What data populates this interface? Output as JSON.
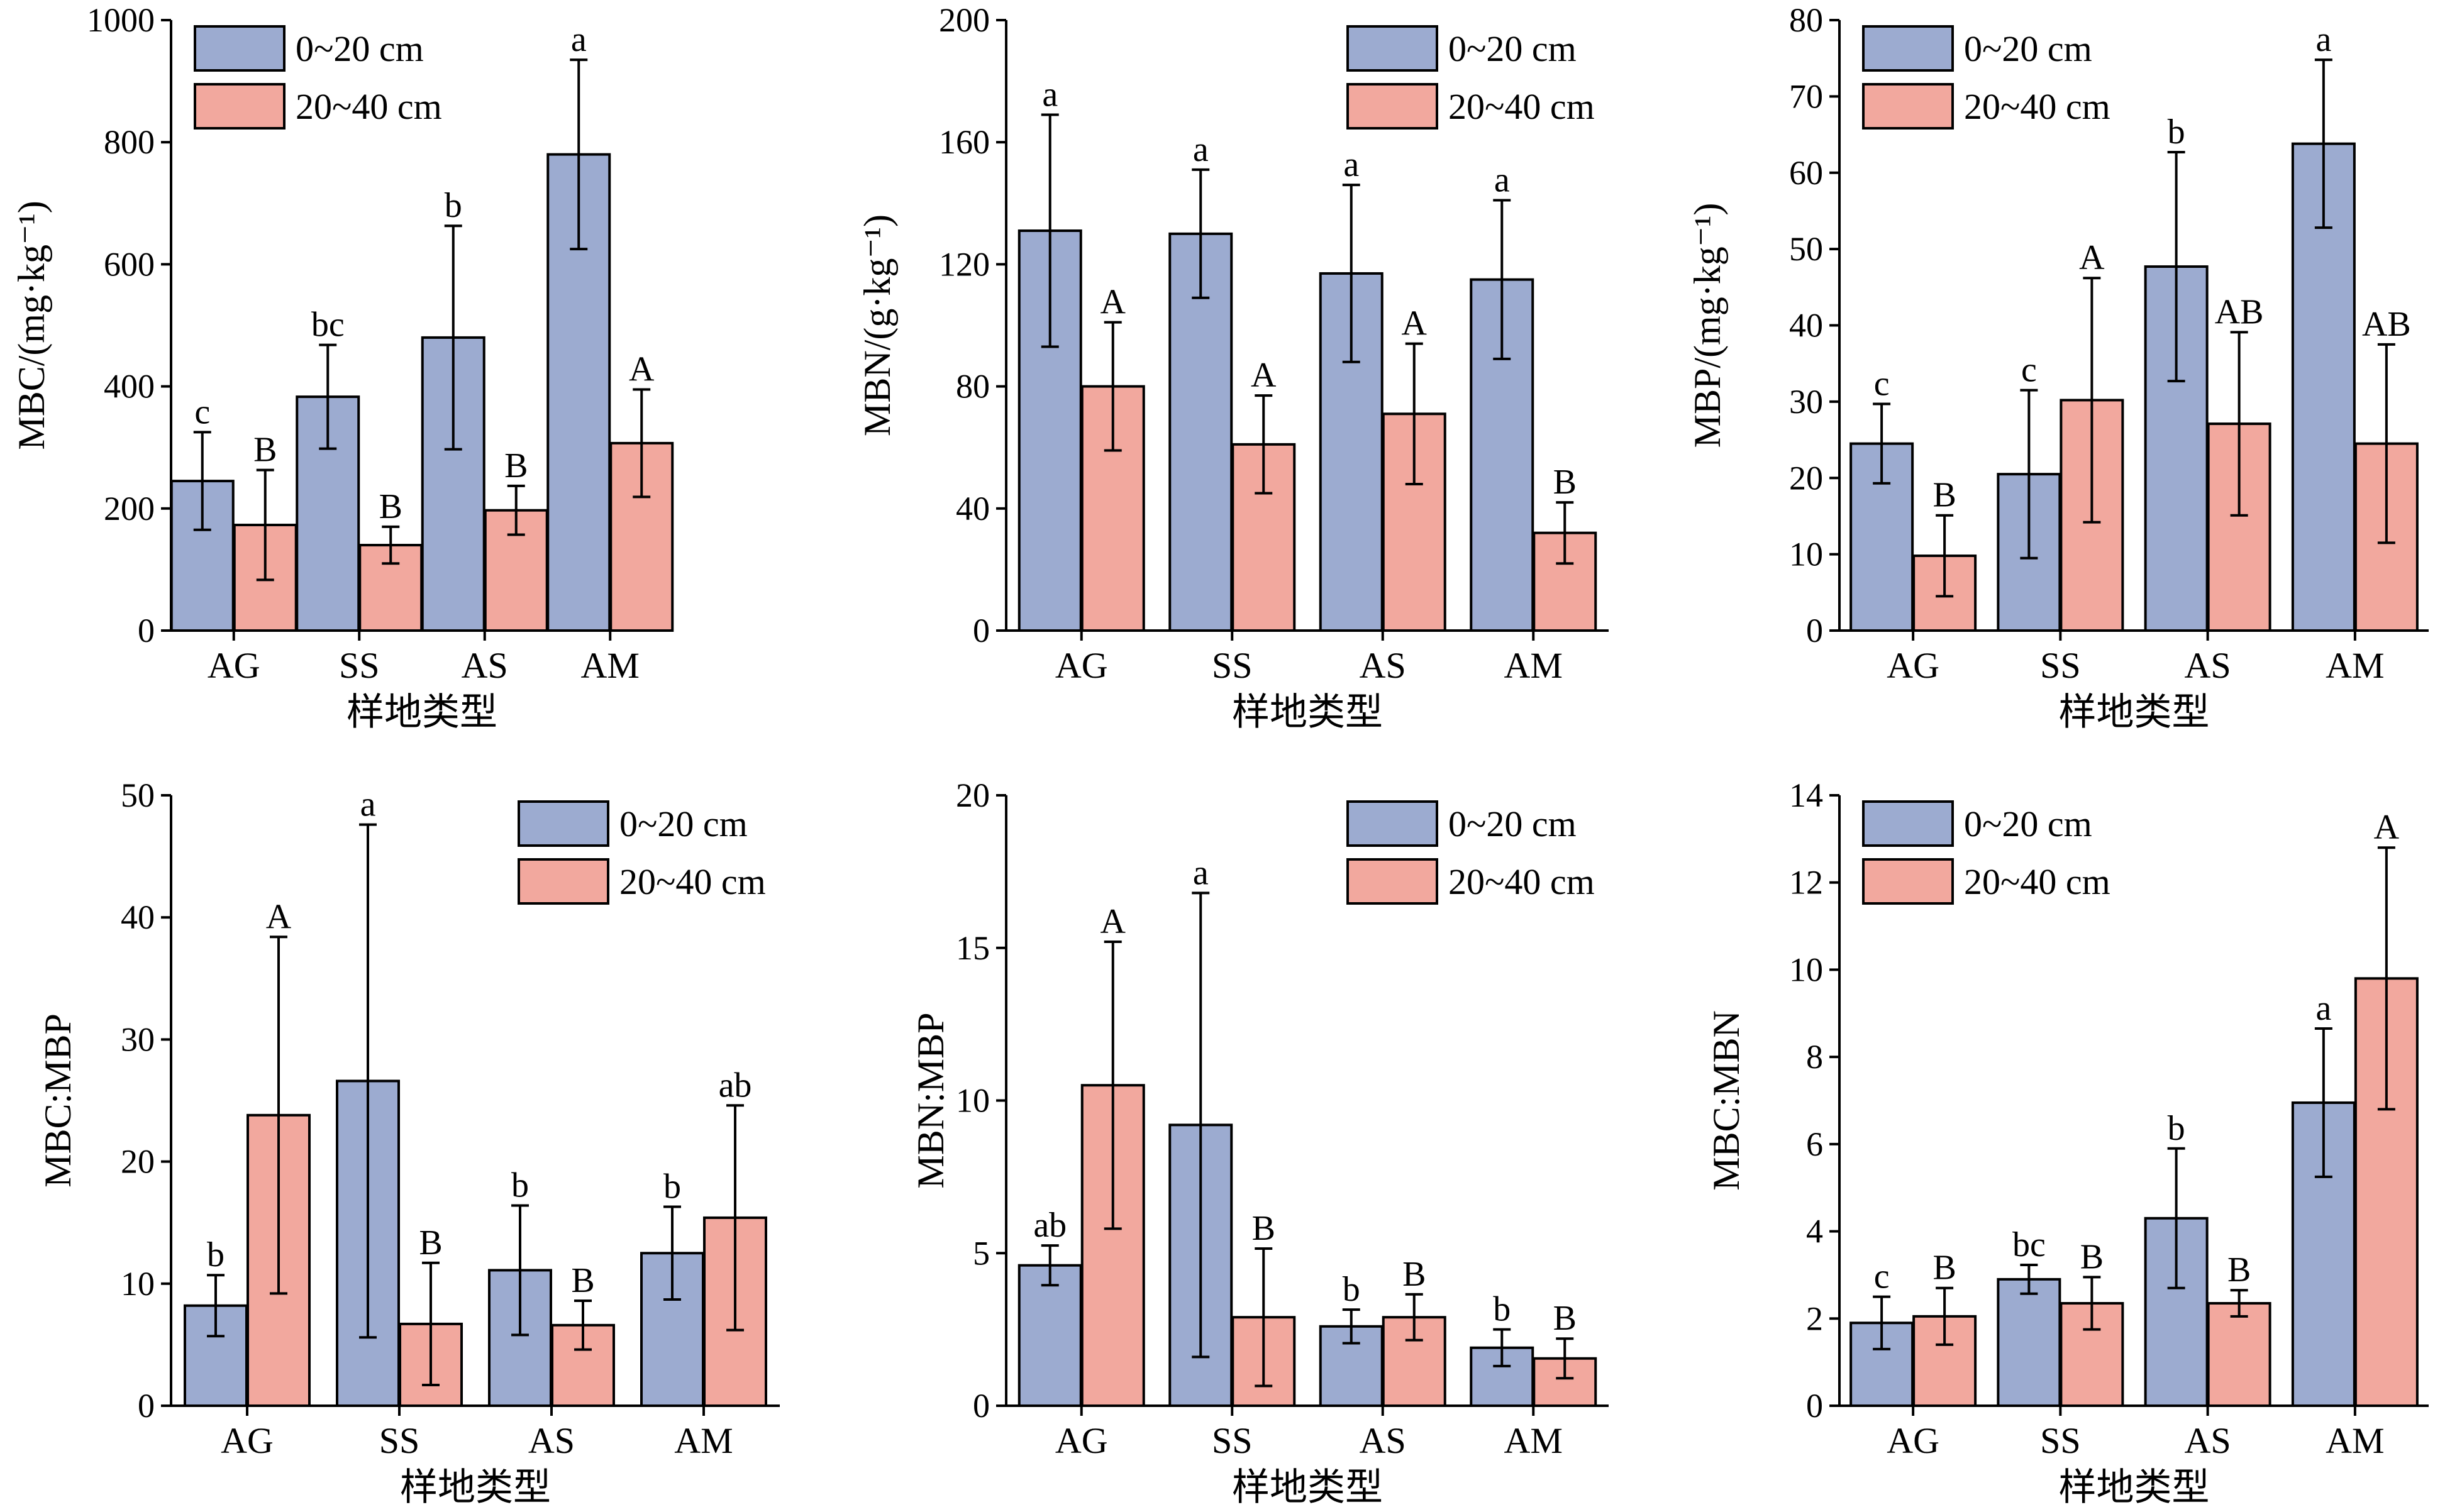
{
  "figure": {
    "series_names": [
      "0~20 cm",
      "20~40 cm"
    ],
    "colors": {
      "series_1": "#9CABD0",
      "series_2": "#F2A89E",
      "axis": "#000000"
    }
  },
  "chart_data": [
    {
      "type": "bar",
      "ylabel": "MBC/(mg·kg⁻¹)",
      "xlabel": "样地类型",
      "categories": [
        "AG",
        "SS",
        "AS",
        "AM"
      ],
      "ylim": [
        0,
        1000
      ],
      "yticks": [
        0,
        200,
        400,
        600,
        800,
        1000
      ],
      "legend": "top-left",
      "series": [
        {
          "name": "0~20 cm",
          "values": [
            245,
            383,
            480,
            780
          ],
          "errors": [
            80,
            85,
            183,
            155
          ],
          "letters": [
            "c",
            "bc",
            "b",
            "a"
          ]
        },
        {
          "name": "20~40 cm",
          "values": [
            173,
            140,
            197,
            307
          ],
          "errors": [
            90,
            30,
            40,
            88
          ],
          "letters": [
            "B",
            "B",
            "B",
            "A"
          ]
        }
      ]
    },
    {
      "type": "bar",
      "ylabel": "MBN/(g·kg⁻¹)",
      "xlabel": "样地类型",
      "categories": [
        "AG",
        "SS",
        "AS",
        "AM"
      ],
      "ylim": [
        0,
        200
      ],
      "yticks": [
        0,
        40,
        80,
        120,
        160,
        200
      ],
      "legend": "top-right",
      "series": [
        {
          "name": "0~20 cm",
          "values": [
            131,
            130,
            117,
            115
          ],
          "errors": [
            38,
            21,
            29,
            26
          ],
          "letters": [
            "a",
            "a",
            "a",
            "a"
          ]
        },
        {
          "name": "20~40 cm",
          "values": [
            80,
            61,
            71,
            32
          ],
          "errors": [
            21,
            16,
            23,
            10
          ],
          "letters": [
            "A",
            "A",
            "A",
            "B"
          ]
        }
      ]
    },
    {
      "type": "bar",
      "ylabel": "MBP/(mg·kg⁻¹)",
      "xlabel": "样地类型",
      "categories": [
        "AG",
        "SS",
        "AS",
        "AM"
      ],
      "ylim": [
        0,
        80
      ],
      "yticks": [
        0,
        10,
        20,
        30,
        40,
        50,
        60,
        70,
        80
      ],
      "legend": "top-left",
      "series": [
        {
          "name": "0~20 cm",
          "values": [
            24.5,
            20.5,
            47.7,
            63.8
          ],
          "errors": [
            5.2,
            11,
            15,
            11
          ],
          "letters": [
            "c",
            "c",
            "b",
            "a"
          ]
        },
        {
          "name": "20~40 cm",
          "values": [
            9.8,
            30.2,
            27.1,
            24.5
          ],
          "errors": [
            5.3,
            16,
            12,
            13
          ],
          "letters": [
            "B",
            "A",
            "AB",
            "AB"
          ]
        }
      ]
    },
    {
      "type": "bar",
      "ylabel": "MBC:MBP",
      "xlabel": "样地类型",
      "categories": [
        "AG",
        "SS",
        "AS",
        "AM"
      ],
      "ylim": [
        0,
        50
      ],
      "yticks": [
        0,
        10,
        20,
        30,
        40,
        50
      ],
      "legend": "top-right",
      "series": [
        {
          "name": "0~20 cm",
          "values": [
            8.2,
            26.6,
            11.1,
            12.5
          ],
          "errors": [
            2.5,
            21,
            5.3,
            3.8
          ],
          "letters": [
            "b",
            "a",
            "b",
            "b"
          ]
        },
        {
          "name": "20~40 cm",
          "values": [
            23.8,
            6.7,
            6.6,
            15.4
          ],
          "errors": [
            14.6,
            5,
            2,
            9.2
          ],
          "letters": [
            "A",
            "B",
            "B",
            "ab"
          ]
        }
      ]
    },
    {
      "type": "bar",
      "ylabel": "MBN:MBP",
      "xlabel": "样地类型",
      "categories": [
        "AG",
        "SS",
        "AS",
        "AM"
      ],
      "ylim": [
        0,
        20
      ],
      "yticks": [
        0,
        5,
        10,
        15,
        20
      ],
      "legend": "top-right",
      "series": [
        {
          "name": "0~20 cm",
          "values": [
            4.6,
            9.2,
            2.6,
            1.9
          ],
          "errors": [
            0.65,
            7.6,
            0.55,
            0.6
          ],
          "letters": [
            "ab",
            "a",
            "b",
            "b"
          ]
        },
        {
          "name": "20~40 cm",
          "values": [
            10.5,
            2.9,
            2.9,
            1.55
          ],
          "errors": [
            4.7,
            2.25,
            0.75,
            0.65
          ],
          "letters": [
            "A",
            "B",
            "B",
            "B"
          ]
        }
      ]
    },
    {
      "type": "bar",
      "ylabel": "MBC:MBN",
      "xlabel": "样地类型",
      "categories": [
        "AG",
        "SS",
        "AS",
        "AM"
      ],
      "ylim": [
        0,
        14
      ],
      "yticks": [
        0,
        2,
        4,
        6,
        8,
        10,
        12,
        14
      ],
      "legend": "top-left",
      "series": [
        {
          "name": "0~20 cm",
          "values": [
            1.9,
            2.9,
            4.3,
            6.95
          ],
          "errors": [
            0.6,
            0.33,
            1.6,
            1.7
          ],
          "letters": [
            "c",
            "bc",
            "b",
            "a"
          ]
        },
        {
          "name": "20~40 cm",
          "values": [
            2.05,
            2.35,
            2.35,
            9.8
          ],
          "errors": [
            0.65,
            0.6,
            0.3,
            3.0
          ],
          "letters": [
            "B",
            "B",
            "B",
            "A"
          ]
        }
      ]
    }
  ]
}
